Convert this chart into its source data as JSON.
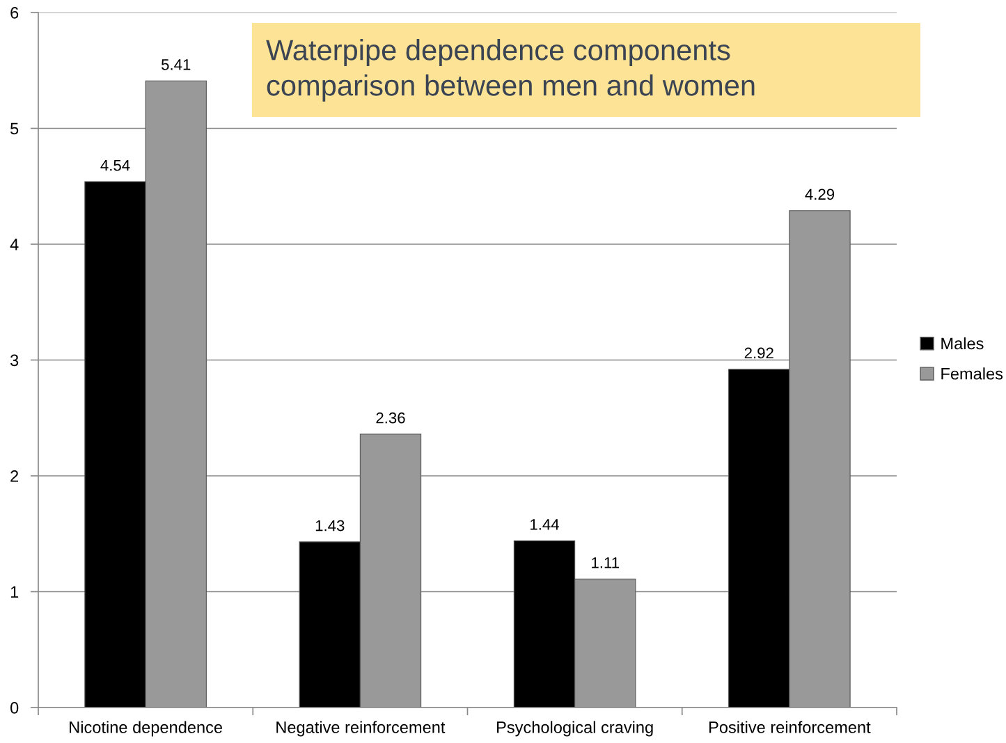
{
  "chart_data": {
    "type": "bar",
    "title": "Waterpipe dependence components\ncomparison between men and women",
    "categories": [
      "Nicotine dependence",
      "Negative reinforcement",
      "Psychological craving",
      "Positive reinforcement"
    ],
    "series": [
      {
        "name": "Males",
        "color": "#000000",
        "values": [
          4.54,
          1.43,
          1.44,
          2.92
        ]
      },
      {
        "name": "Females",
        "color": "#999999",
        "values": [
          5.41,
          2.36,
          1.11,
          4.29
        ]
      }
    ],
    "ylim": [
      0,
      6
    ],
    "yticks": [
      0,
      1,
      2,
      3,
      4,
      5,
      6
    ],
    "grid": "y",
    "legend": "right",
    "data_labels": true
  }
}
